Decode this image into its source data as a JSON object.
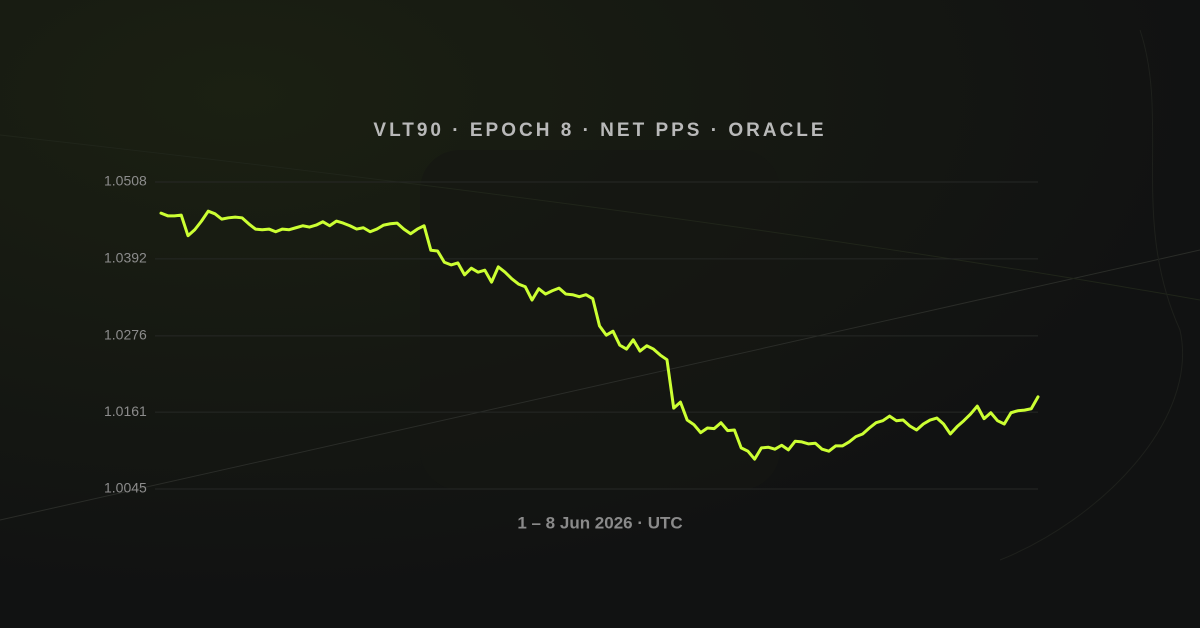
{
  "chart_data": {
    "type": "line",
    "title": "VLT90 · EPOCH 8 · NET PPS · ORACLE",
    "xlabel": "1 – 8 Jun 2026 · UTC",
    "color": "#ccff33",
    "ylim": [
      1.0045,
      1.0508
    ],
    "yticks": [
      1.0508,
      1.0392,
      1.0276,
      1.0161,
      1.0045
    ],
    "grid": true,
    "values": [
      1.0461,
      1.0457,
      1.0457,
      1.0458,
      1.0427,
      1.0436,
      1.0449,
      1.0464,
      1.046,
      1.0452,
      1.0454,
      1.0455,
      1.0454,
      1.0445,
      1.0437,
      1.0436,
      1.0437,
      1.0433,
      1.0437,
      1.0436,
      1.0439,
      1.0442,
      1.044,
      1.0443,
      1.0448,
      1.0442,
      1.0449,
      1.0446,
      1.0442,
      1.0437,
      1.0439,
      1.0433,
      1.0437,
      1.0443,
      1.0445,
      1.0446,
      1.0437,
      1.043,
      1.0437,
      1.0442,
      1.0405,
      1.0404,
      1.0387,
      1.0383,
      1.0386,
      1.0368,
      1.0378,
      1.0372,
      1.0375,
      1.0357,
      1.038,
      1.0372,
      1.0362,
      1.0354,
      1.035,
      1.033,
      1.0347,
      1.0339,
      1.0344,
      1.0348,
      1.0339,
      1.0338,
      1.0335,
      1.0338,
      1.0332,
      1.0291,
      1.0277,
      1.0283,
      1.0262,
      1.0256,
      1.027,
      1.0253,
      1.0261,
      1.0256,
      1.0247,
      1.024,
      1.0167,
      1.0176,
      1.0149,
      1.0142,
      1.013,
      1.0137,
      1.0136,
      1.0145,
      1.0133,
      1.0134,
      1.0107,
      1.0102,
      1.009,
      1.0107,
      1.0108,
      1.0105,
      1.0111,
      1.0104,
      1.0117,
      1.0116,
      1.0113,
      1.0114,
      1.0105,
      1.0102,
      1.011,
      1.011,
      1.0116,
      1.0124,
      1.0128,
      1.0137,
      1.0145,
      1.0148,
      1.0155,
      1.0148,
      1.0149,
      1.014,
      1.0134,
      1.0143,
      1.0149,
      1.0152,
      1.0143,
      1.0128,
      1.0139,
      1.0148,
      1.0158,
      1.017,
      1.0151,
      1.016,
      1.0148,
      1.0143,
      1.016,
      1.0163,
      1.0164,
      1.0166,
      1.0184
    ]
  }
}
